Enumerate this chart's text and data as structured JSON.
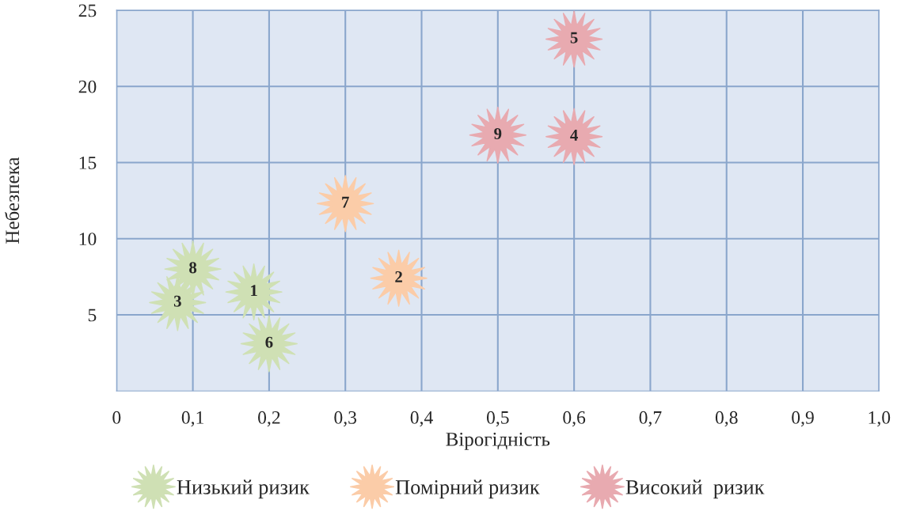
{
  "chart_data": {
    "type": "scatter",
    "xlabel": "Вірогідність",
    "ylabel": "Небезпека",
    "xlim": [
      0,
      1.0
    ],
    "ylim": [
      0,
      25
    ],
    "xticks": [
      0,
      {
        "value": 0.1,
        "label": "0,1"
      },
      {
        "value": 0.2,
        "label": "0,2"
      },
      {
        "value": 0.3,
        "label": "0,3"
      },
      {
        "value": 0.4,
        "label": "0,4"
      },
      {
        "value": 0.5,
        "label": "0,5"
      },
      {
        "value": 0.6,
        "label": "0,6"
      },
      {
        "value": 0.7,
        "label": "0,7"
      },
      {
        "value": 0.8,
        "label": "0,8"
      },
      {
        "value": 0.9,
        "label": "0,9"
      },
      {
        "value": 1.0,
        "label": "1,0"
      }
    ],
    "yticks": [
      5,
      10,
      15,
      20,
      25
    ],
    "grid": true,
    "legend": "bottom",
    "marker": "star",
    "series": [
      {
        "name": "Низький ризик",
        "color": "#cfe0b4",
        "x": [
          0.18,
          0.08,
          0.2,
          0.1
        ],
        "values": [
          6.5,
          5.8,
          3.1,
          8.0
        ]
      },
      {
        "name": "Помірний ризик",
        "color": "#fbcca8",
        "x": [
          0.3,
          0.37
        ],
        "values": [
          12.3,
          7.4
        ]
      },
      {
        "name": "Високий  ризик",
        "color": "#e8aab0",
        "x": [
          0.5,
          0.6,
          0.6
        ],
        "values": [
          16.8,
          16.7,
          23.1
        ]
      }
    ],
    "annotations": [
      {
        "text": "1",
        "x": 0.18,
        "y": 6.5
      },
      {
        "text": "3",
        "x": 0.08,
        "y": 5.8
      },
      {
        "text": "6",
        "x": 0.2,
        "y": 3.1
      },
      {
        "text": "8",
        "x": 0.1,
        "y": 8.0
      },
      {
        "text": "7",
        "x": 0.3,
        "y": 12.3
      },
      {
        "text": "2",
        "x": 0.37,
        "y": 7.4
      },
      {
        "text": "9",
        "x": 0.5,
        "y": 16.8
      },
      {
        "text": "4",
        "x": 0.6,
        "y": 16.7
      },
      {
        "text": "5",
        "x": 0.6,
        "y": 23.1
      }
    ]
  }
}
